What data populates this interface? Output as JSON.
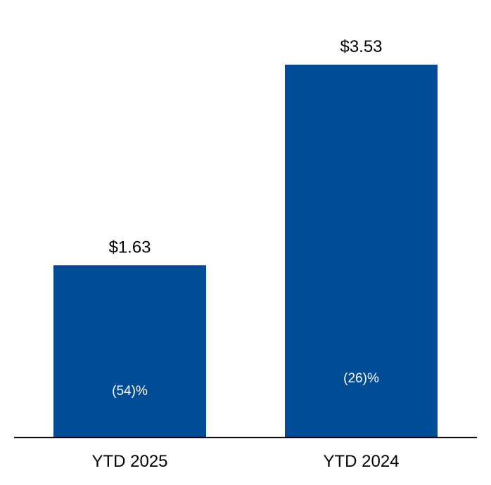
{
  "chart_data": {
    "type": "bar",
    "categories": [
      "YTD 2025",
      "YTD 2024"
    ],
    "values": [
      1.63,
      3.53
    ],
    "value_labels": [
      "$1.63",
      "$3.53"
    ],
    "change_labels": [
      "(54)%",
      "(26)%"
    ],
    "title": "",
    "xlabel": "",
    "ylabel": "",
    "ylim": [
      0,
      3.53
    ],
    "grid": false,
    "colors": {
      "bar": "#004C97",
      "axis": "#000000",
      "change_text": "#ffffff"
    }
  }
}
